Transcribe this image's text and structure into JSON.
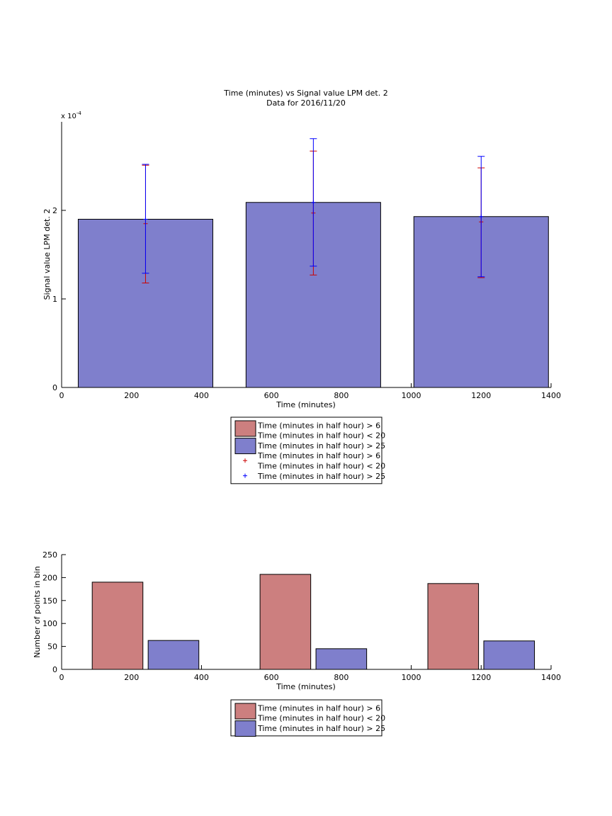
{
  "chart_data": [
    {
      "type": "bar",
      "title": "Time (minutes) vs Signal value LPM det. 2",
      "subtitle": "Data for 2016/11/20",
      "xlabel": "Time (minutes)",
      "ylabel": "Signal value LPM det. 2",
      "y_exponent_label": "x 10",
      "y_exponent_power": "-4",
      "xlim": [
        0,
        1400
      ],
      "ylim": [
        0,
        3.0
      ],
      "y_scale_note": "values in units of 1e-4",
      "xticks": [
        0,
        200,
        400,
        600,
        800,
        1000,
        1200,
        1400
      ],
      "yticks": [
        0,
        1,
        2
      ],
      "bars": [
        {
          "center": 240,
          "width": 385,
          "value": 1.9
        },
        {
          "center": 720,
          "width": 385,
          "value": 2.09
        },
        {
          "center": 1200,
          "width": 385,
          "value": 1.93
        }
      ],
      "series": [
        {
          "name": "Time (minutes in half hour) > 6\nTime (minutes in half hour) < 20",
          "color": "#cc0000",
          "x": [
            240,
            720,
            1200
          ],
          "y": [
            1.85,
            1.97,
            1.87
          ],
          "lower": [
            1.18,
            1.27,
            1.24
          ],
          "upper": [
            2.51,
            2.67,
            2.48
          ]
        },
        {
          "name": "Time (minutes in half hour) > 25",
          "color": "#0000ff",
          "x": [
            240,
            720,
            1200
          ],
          "y": [
            1.9,
            2.09,
            1.93
          ],
          "lower": [
            1.29,
            1.37,
            1.25
          ],
          "upper": [
            2.52,
            2.81,
            2.61
          ]
        }
      ],
      "legend": {
        "placement": "below",
        "entries": [
          {
            "kind": "patch",
            "color": "#cc7f7f",
            "lines": [
              "Time (minutes in half hour) > 6",
              "Time (minutes in half hour) < 20"
            ]
          },
          {
            "kind": "patch",
            "color": "#7f7fcc",
            "lines": [
              "Time (minutes in half hour) > 25"
            ]
          },
          {
            "kind": "marker",
            "color": "#cc0000",
            "lines": [
              "Time (minutes in half hour) > 6",
              "Time (minutes in half hour) < 20"
            ]
          },
          {
            "kind": "marker",
            "color": "#0000ff",
            "lines": [
              "Time (minutes in half hour) > 25"
            ]
          }
        ]
      },
      "bar_color": "#7f7fcc"
    },
    {
      "type": "bar",
      "xlabel": "Time (minutes)",
      "ylabel": "Number of points in bin",
      "xlim": [
        0,
        1400
      ],
      "ylim": [
        0,
        250
      ],
      "xticks": [
        0,
        200,
        400,
        600,
        800,
        1000,
        1200,
        1400
      ],
      "yticks": [
        0,
        50,
        100,
        150,
        200,
        250
      ],
      "categories": [
        240,
        720,
        1200
      ],
      "series": [
        {
          "name": "Time (minutes in half hour) > 6\nTime (minutes in half hour) < 20",
          "color": "#cc7f7f",
          "x": [
            160,
            640,
            1120
          ],
          "values": [
            190,
            207,
            187
          ],
          "width": 145
        },
        {
          "name": "Time (minutes in half hour) > 25",
          "color": "#7f7fcc",
          "x": [
            320,
            800,
            1280
          ],
          "values": [
            63,
            45,
            62
          ],
          "width": 145
        }
      ],
      "legend": {
        "placement": "below",
        "entries": [
          {
            "kind": "patch",
            "color": "#cc7f7f",
            "lines": [
              "Time (minutes in half hour) > 6",
              "Time (minutes in half hour) < 20"
            ]
          },
          {
            "kind": "patch",
            "color": "#7f7fcc",
            "lines": [
              "Time (minutes in half hour) > 25"
            ]
          }
        ]
      }
    }
  ]
}
